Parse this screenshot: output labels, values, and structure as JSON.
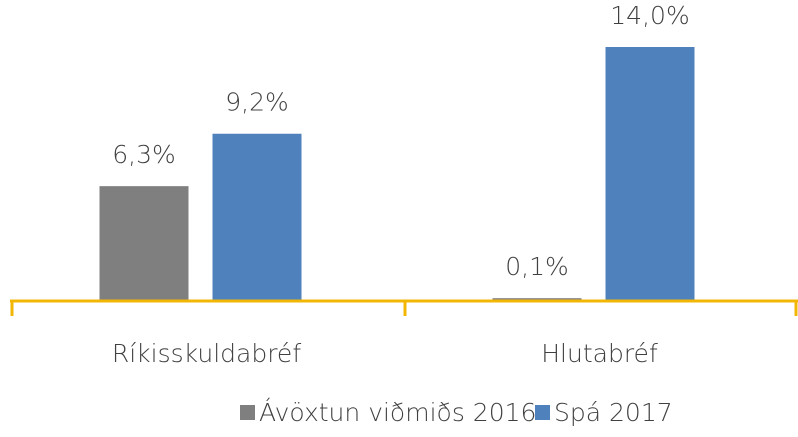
{
  "chart_data": {
    "type": "bar",
    "categories": [
      "Ríkisskuldabréf",
      "Hlutabréf"
    ],
    "series": [
      {
        "name": "Ávöxtun viðmiðs 2016",
        "color": "#7f7f7f",
        "values": [
          6.3,
          0.1
        ],
        "value_labels": [
          "6,3%",
          "0,1%"
        ]
      },
      {
        "name": "Spá 2017",
        "color": "#4f81bd",
        "values": [
          9.2,
          14.0
        ],
        "value_labels": [
          "9,2%",
          "14,0%"
        ]
      }
    ]
  }
}
